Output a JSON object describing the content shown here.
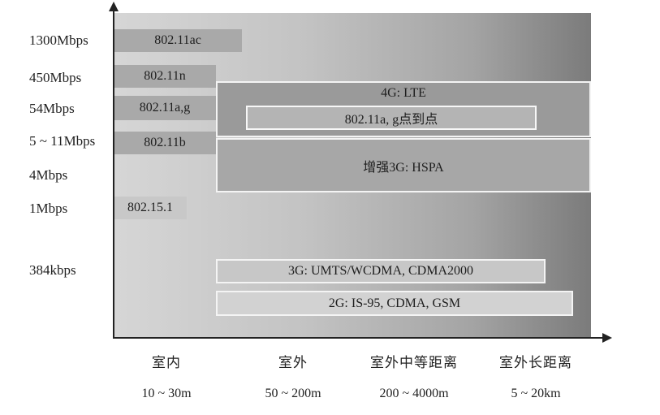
{
  "y_labels": [
    "1300Mbps",
    "450Mbps",
    "54Mbps",
    "5 ~ 11Mbps",
    "4Mbps",
    "1Mbps",
    "384kbps"
  ],
  "x_categories": [
    {
      "name": "室内",
      "range": "10 ~ 30m"
    },
    {
      "name": "室外",
      "range": "50 ~ 200m"
    },
    {
      "name": "室外中等距离",
      "range": "200 ~ 4000m"
    },
    {
      "name": "室外长距离",
      "range": "5 ~ 20km"
    }
  ],
  "standards": [
    "802.11ac",
    "802.11n",
    "802.11a,g",
    "802.11b",
    "802.15.1"
  ],
  "networks": {
    "lte": "4G: LTE",
    "p2p": "802.11a, g点到点",
    "hspa": "增强3G: HSPA",
    "umts": "3G: UMTS/WCDMA, CDMA2000",
    "gsm": "2G: IS-95, CDMA, GSM"
  }
}
